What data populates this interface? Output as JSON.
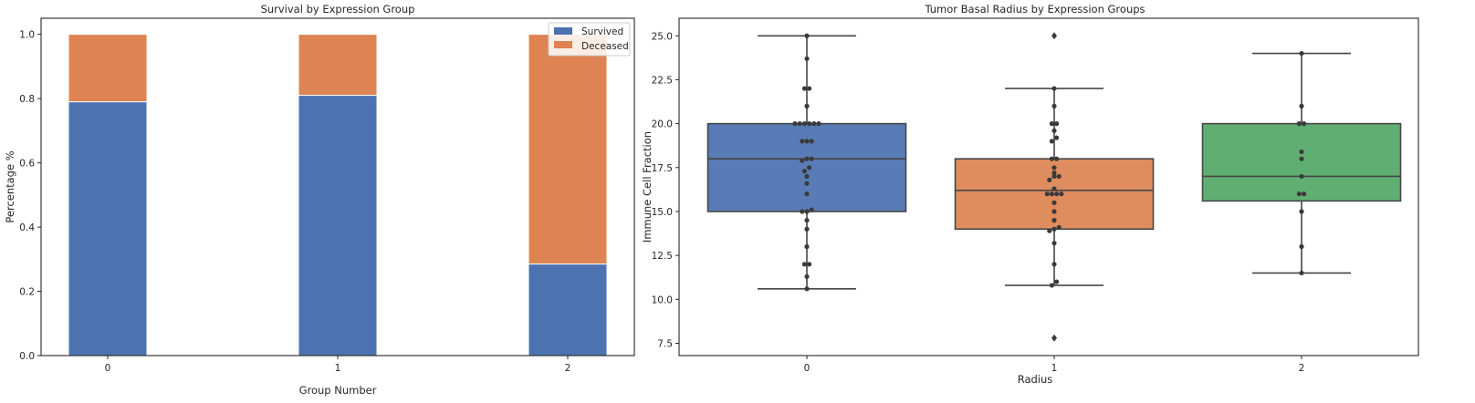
{
  "colors": {
    "blue": "#4c72b0",
    "orange": "#dd8452",
    "green": "#55a868",
    "frame": "#262626",
    "point": "#3a3a3a"
  },
  "chart_data": [
    {
      "type": "bar",
      "stacked": true,
      "title": "Survival by Expression Group",
      "xlabel": "Group Number",
      "ylabel": "Percentage %",
      "categories": [
        "0",
        "1",
        "2"
      ],
      "ylim": [
        0,
        1.05
      ],
      "yticks": [
        0.0,
        0.2,
        0.4,
        0.6,
        0.8,
        1.0
      ],
      "ytick_labels": [
        "0.0",
        "0.2",
        "0.4",
        "0.6",
        "0.8",
        "1.0"
      ],
      "legend_position": "top-right",
      "grid": false,
      "series": [
        {
          "name": "Survived",
          "color": "#4c72b0",
          "values": [
            0.79,
            0.81,
            0.285
          ]
        },
        {
          "name": "Deceased",
          "color": "#dd8452",
          "values": [
            0.21,
            0.19,
            0.715
          ]
        }
      ]
    },
    {
      "type": "box",
      "title": "Tumor Basal Radius by Expression Groups",
      "xlabel": "Radius",
      "ylabel": "Immune Cell Fraction",
      "categories": [
        "0",
        "1",
        "2"
      ],
      "ylim": [
        6.8,
        26.0
      ],
      "yticks": [
        7.5,
        10.0,
        12.5,
        15.0,
        17.5,
        20.0,
        22.5,
        25.0
      ],
      "ytick_labels": [
        "7.5",
        "10.0",
        "12.5",
        "15.0",
        "17.5",
        "20.0",
        "22.5",
        "25.0"
      ],
      "grid": false,
      "boxes": [
        {
          "category": "0",
          "color": "#4c72b0",
          "whisker_low": 10.6,
          "q1": 15.0,
          "median": 18.0,
          "q3": 20.0,
          "whisker_high": 25.0,
          "outliers": [],
          "points": [
            25.0,
            23.7,
            22.0,
            22.0,
            21.0,
            20.0,
            20.0,
            20.0,
            20.0,
            20.0,
            20.0,
            19.0,
            19.0,
            19.0,
            18.0,
            18.0,
            17.9,
            17.5,
            17.3,
            17.0,
            16.6,
            16.0,
            15.1,
            15.0,
            15.0,
            14.5,
            14.0,
            13.0,
            12.0,
            12.0,
            11.3,
            10.6
          ]
        },
        {
          "category": "1",
          "color": "#dd8452",
          "whisker_low": 10.8,
          "q1": 14.0,
          "median": 16.2,
          "q3": 18.0,
          "whisker_high": 22.0,
          "outliers": [
            25.0,
            7.8
          ],
          "points": [
            22.0,
            21.0,
            20.0,
            20.0,
            19.6,
            19.2,
            19.0,
            18.0,
            18.0,
            17.5,
            17.2,
            17.0,
            17.0,
            16.8,
            16.3,
            16.0,
            16.0,
            16.0,
            16.0,
            15.5,
            15.0,
            14.5,
            14.1,
            14.0,
            13.9,
            13.2,
            12.0,
            11.0,
            10.8
          ]
        },
        {
          "category": "2",
          "color": "#55a868",
          "whisker_low": 11.5,
          "q1": 15.6,
          "median": 17.0,
          "q3": 20.0,
          "whisker_high": 24.0,
          "outliers": [],
          "points": [
            24.0,
            21.0,
            20.0,
            20.0,
            18.4,
            18.0,
            17.0,
            16.0,
            16.0,
            15.0,
            13.0,
            11.5
          ]
        }
      ]
    }
  ]
}
